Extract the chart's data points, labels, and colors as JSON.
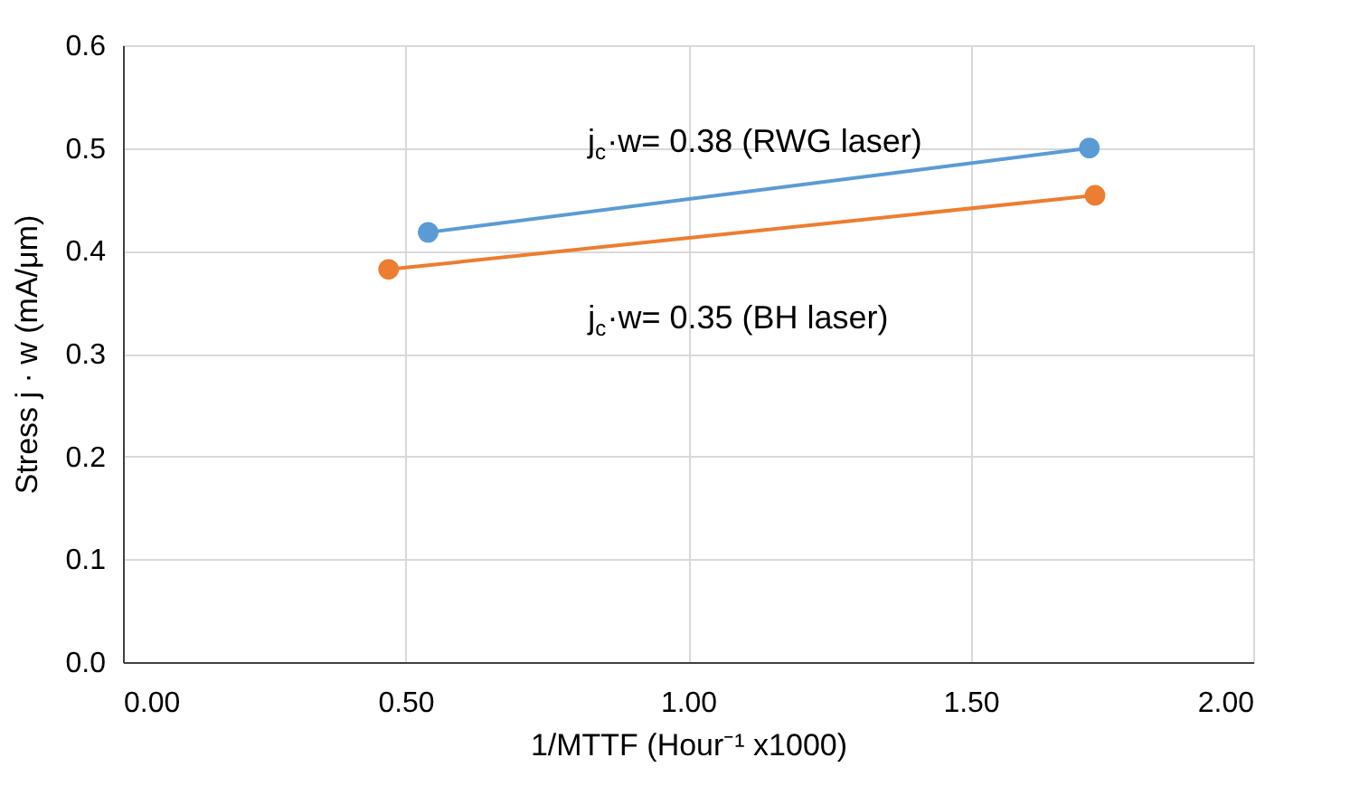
{
  "chart_data": {
    "type": "line",
    "xlabel": "1/MTTF (Hour⁻¹ x1000)",
    "ylabel": "Stress j · w (mA/μm)",
    "series": [
      {
        "color": "#5b9bd5",
        "x": [
          0.54,
          1.71
        ],
        "values": [
          0.418,
          0.5
        ]
      },
      {
        "color": "#ed7d31",
        "x": [
          0.47,
          1.72
        ],
        "values": [
          0.382,
          0.454
        ]
      }
    ],
    "xlim": [
      0,
      2
    ],
    "xticks": [
      {
        "value": 0,
        "label": "0.00"
      },
      {
        "value": 0.5,
        "label": "0.50"
      },
      {
        "value": 1,
        "label": "1.00"
      },
      {
        "value": 1.5,
        "label": "1.50"
      },
      {
        "value": 2,
        "label": "2.00"
      }
    ],
    "ylim": [
      0,
      0.6
    ],
    "yticks": [
      {
        "value": 0,
        "label": "0.0"
      },
      {
        "value": 0.1,
        "label": "0.1"
      },
      {
        "value": 0.2,
        "label": "0.2"
      },
      {
        "value": 0.3,
        "label": "0.3"
      },
      {
        "value": 0.4,
        "label": "0.4"
      },
      {
        "value": 0.5,
        "label": "0.5"
      },
      {
        "value": 0.6,
        "label": "0.6"
      }
    ],
    "annotations": [
      "j$_{c}$·w= 0.38 (RWG laser)",
      "j$_{c}$·w= 0.35 (BH laser)"
    ],
    "grid": true,
    "marker": "circle",
    "line_style": "solid"
  }
}
